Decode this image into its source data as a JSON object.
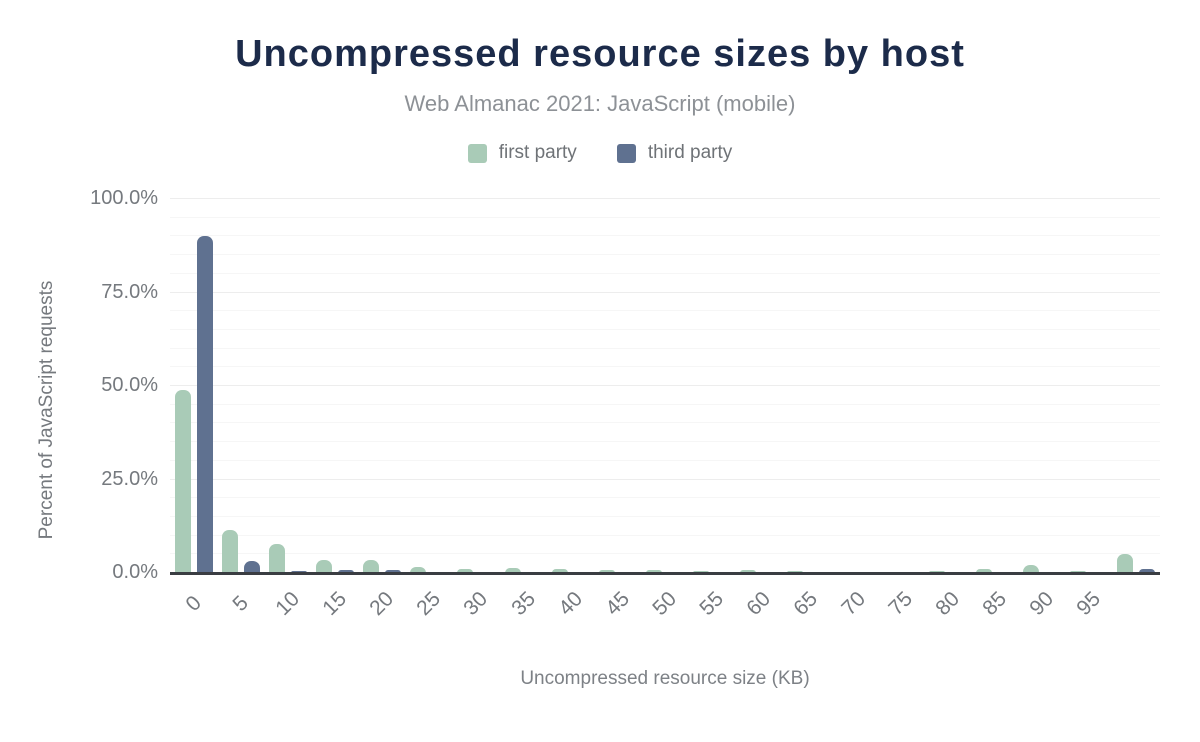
{
  "header": {
    "title": "Uncompressed resource sizes by host",
    "subtitle": "Web Almanac 2021: JavaScript (mobile)"
  },
  "colors": {
    "title_navy": "#1c2b4a",
    "first_party_green": "#a9cbb7",
    "third_party_blue": "#5f7190",
    "axis_text_gray": "#75797e",
    "baseline_dark": "#3a3d42"
  },
  "chart_data": {
    "type": "bar",
    "title": "Uncompressed resource sizes by host",
    "subtitle": "Web Almanac 2021: JavaScript (mobile)",
    "xlabel": "Uncompressed resource size (KB)",
    "ylabel": "Percent of JavaScript requests",
    "legend_position": "top",
    "grid": "horizontal",
    "grid_step": 5,
    "ylim": [
      0,
      100
    ],
    "y_ticks": [
      {
        "label": "0.0%",
        "value": 0
      },
      {
        "label": "25.0%",
        "value": 25
      },
      {
        "label": "50.0%",
        "value": 50
      },
      {
        "label": "75.0%",
        "value": 75
      },
      {
        "label": "100.0%",
        "value": 100
      }
    ],
    "categories": [
      0,
      5,
      10,
      15,
      20,
      25,
      30,
      35,
      40,
      45,
      50,
      55,
      60,
      65,
      70,
      75,
      80,
      85,
      90,
      95,
      100
    ],
    "x_tick_labels": [
      "0",
      "5",
      "10",
      "15",
      "20",
      "25",
      "30",
      "35",
      "40",
      "45",
      "50",
      "55",
      "60",
      "65",
      "70",
      "75",
      "80",
      "85",
      "90",
      "95",
      ""
    ],
    "series": [
      {
        "name": "first party",
        "color": "#a9cbb7",
        "values": [
          49,
          11.5,
          7.7,
          3.6,
          3.4,
          1.5,
          1.1,
          1.3,
          1.1,
          0.8,
          0.8,
          0.6,
          0.7,
          0.6,
          0.1,
          0.1,
          0.6,
          1.2,
          2.1,
          0.6,
          5.1
        ]
      },
      {
        "name": "third party",
        "color": "#5f7190",
        "values": [
          90,
          3.1,
          0.6,
          0.7,
          0.7,
          0.1,
          0.1,
          0.1,
          0.1,
          0.1,
          0.1,
          0.1,
          0.1,
          0.1,
          0,
          0,
          0.1,
          0.1,
          0.2,
          0.1,
          1.0
        ]
      }
    ]
  }
}
